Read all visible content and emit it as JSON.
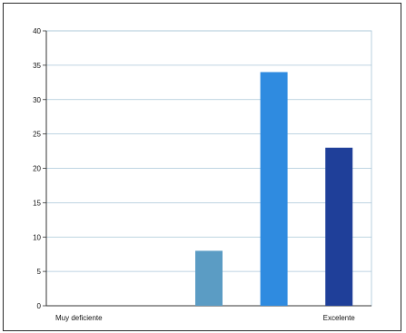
{
  "chart_data": {
    "type": "bar",
    "categories": [
      "Muy deficiente",
      "",
      "",
      "",
      "Excelente"
    ],
    "values": [
      0,
      0,
      8,
      34,
      23
    ],
    "colors": [
      "#9ec3e8",
      "#6fa8dc",
      "#5b9cc4",
      "#2f8be0",
      "#1f3f99"
    ],
    "ylim": [
      0,
      40
    ],
    "yticks": [
      "0",
      "5",
      "10",
      "15",
      "20",
      "25",
      "30",
      "35",
      "40"
    ],
    "grid": true,
    "legend": false
  },
  "style": {
    "plot_background": "#ffffff",
    "gridline_color": "#a9c6d8",
    "axis_color": "#333333"
  }
}
